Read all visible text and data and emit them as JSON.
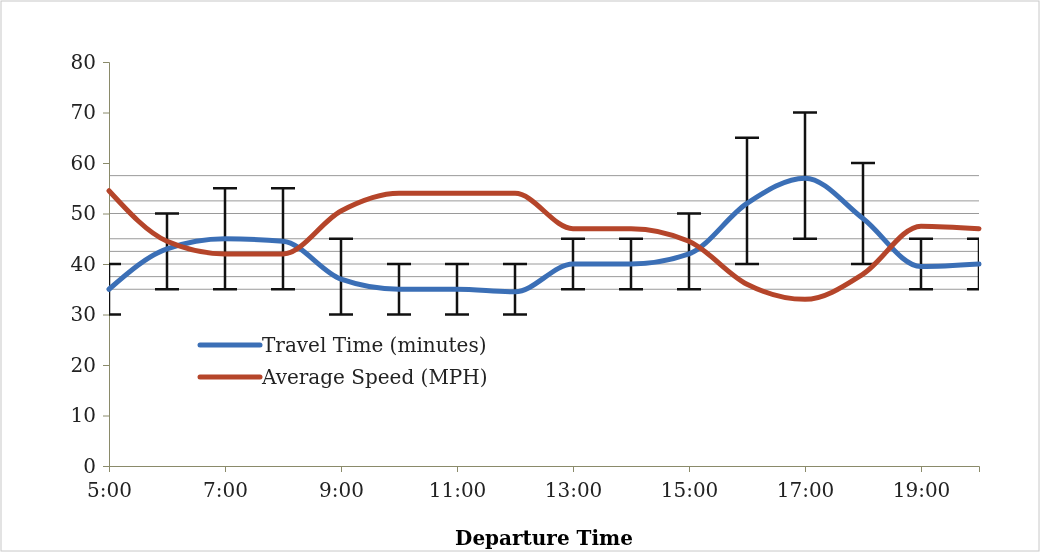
{
  "chart_data": {
    "type": "line",
    "xlabel": "Departure Time",
    "x": [
      5,
      6,
      7,
      8,
      9,
      10,
      11,
      12,
      13,
      14,
      15,
      16,
      17,
      18,
      19,
      20
    ],
    "xlim": [
      5,
      20
    ],
    "xticks": [
      {
        "value": 5,
        "label": "5:00"
      },
      {
        "value": 7,
        "label": "7:00"
      },
      {
        "value": 9,
        "label": "9:00"
      },
      {
        "value": 11,
        "label": "11:00"
      },
      {
        "value": 13,
        "label": "13:00"
      },
      {
        "value": 15,
        "label": "15:00"
      },
      {
        "value": 17,
        "label": "17:00"
      },
      {
        "value": 19,
        "label": "19:00"
      }
    ],
    "ylim": [
      0,
      80
    ],
    "yticks": [
      0,
      10,
      20,
      30,
      40,
      50,
      60,
      70,
      80
    ],
    "series": [
      {
        "name": "Travel Time (minutes)",
        "color": "#3b6fb6",
        "values": [
          35,
          43,
          45,
          44.5,
          37,
          35,
          35,
          34.5,
          40,
          40,
          42,
          52,
          57,
          49,
          39.5,
          40
        ],
        "errors": [
          [
            30,
            40
          ],
          [
            35,
            50
          ],
          [
            35,
            55
          ],
          [
            35,
            55
          ],
          [
            30,
            45
          ],
          [
            30,
            40
          ],
          [
            30,
            40
          ],
          [
            30,
            40
          ],
          [
            35,
            45
          ],
          [
            35,
            45
          ],
          [
            35,
            50
          ],
          [
            40,
            65
          ],
          [
            45,
            70
          ],
          [
            40,
            60
          ],
          [
            35,
            45
          ],
          [
            35,
            45
          ]
        ]
      },
      {
        "name": "Average Speed (MPH)",
        "color": "#b5452a",
        "values": [
          54.5,
          44.5,
          42,
          42,
          50.5,
          54,
          54,
          54,
          47,
          47,
          44.5,
          36,
          33,
          38,
          47.5,
          47
        ]
      }
    ],
    "ref_lines": [
      {
        "axis": "y",
        "value": 35,
        "color": "#9a9a9a"
      },
      {
        "axis": "y",
        "value": 37.5,
        "color": "#9a9a9a"
      },
      {
        "axis": "y",
        "value": 40,
        "color": "#9a9a9a"
      },
      {
        "axis": "y",
        "value": 42.5,
        "color": "#9a9a9a"
      },
      {
        "axis": "y",
        "value": 45,
        "color": "#9a9a9a"
      },
      {
        "axis": "y",
        "value": 50,
        "color": "#9a9a9a"
      },
      {
        "axis": "y",
        "value": 52.5,
        "color": "#9a9a9a"
      },
      {
        "axis": "y",
        "value": 57.5,
        "color": "#9a9a9a"
      }
    ],
    "legend": "left",
    "line_style": "solid"
  }
}
